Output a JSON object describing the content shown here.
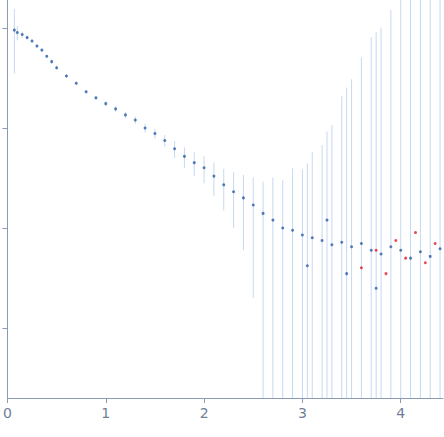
{
  "chart_data": {
    "type": "scatter",
    "log": "y",
    "tick_labels": "x",
    "grid": false,
    "xlim": [
      0,
      4.43
    ],
    "xticks": [
      0,
      1,
      2,
      3,
      4
    ],
    "ylim": [
      0.0002,
      1.9
    ],
    "yticks": [
      0.001,
      0.01,
      0.1,
      1
    ],
    "series": [
      {
        "color": "#2a5caa",
        "error_color": "#c6d9f0",
        "marker": "circle",
        "x": [
          0.07,
          0.1,
          0.15,
          0.2,
          0.25,
          0.3,
          0.35,
          0.4,
          0.45,
          0.5,
          0.6,
          0.7,
          0.8,
          0.9,
          1.0,
          1.1,
          1.2,
          1.3,
          1.4,
          1.5,
          1.6,
          1.7,
          1.8,
          1.9,
          2.0,
          2.1,
          2.2,
          2.3,
          2.4,
          2.5,
          2.6,
          2.7,
          2.8,
          2.9,
          3.0,
          3.05,
          3.1,
          3.2,
          3.25,
          3.3,
          3.4,
          3.45,
          3.5,
          3.6,
          3.7,
          3.75,
          3.8,
          3.9,
          4.0,
          4.1,
          4.2,
          4.3,
          4.4
        ],
        "values": [
          0.95,
          0.9,
          0.86,
          0.8,
          0.74,
          0.66,
          0.6,
          0.52,
          0.46,
          0.4,
          0.33,
          0.28,
          0.23,
          0.2,
          0.175,
          0.155,
          0.135,
          0.12,
          0.1,
          0.088,
          0.075,
          0.062,
          0.052,
          0.045,
          0.04,
          0.033,
          0.027,
          0.023,
          0.02,
          0.017,
          0.014,
          0.012,
          0.01,
          0.0095,
          0.0085,
          0.0042,
          0.008,
          0.0075,
          0.012,
          0.0068,
          0.0072,
          0.0035,
          0.0065,
          0.007,
          0.006,
          0.0025,
          0.0055,
          0.0065,
          0.006,
          0.005,
          0.0058,
          0.0052,
          0.0062
        ],
        "errors": [
          0.6,
          0.15,
          0.06,
          0.04,
          0.03,
          0.03,
          0.02,
          0.02,
          0.02,
          0.02,
          0.015,
          0.012,
          0.01,
          0.01,
          0.01,
          0.01,
          0.01,
          0.01,
          0.01,
          0.01,
          0.01,
          0.012,
          0.012,
          0.012,
          0.012,
          0.012,
          0.012,
          0.013,
          0.014,
          0.015,
          0.015,
          0.02,
          0.02,
          0.03,
          0.03,
          0.04,
          0.05,
          0.06,
          0.08,
          0.1,
          0.2,
          0.25,
          0.3,
          0.5,
          0.8,
          0.9,
          1,
          1.5,
          2,
          2,
          3,
          3,
          3
        ]
      },
      {
        "color": "#e0202a",
        "marker": "circle",
        "x": [
          3.6,
          3.75,
          3.85,
          3.95,
          4.05,
          4.15,
          4.25,
          4.35
        ],
        "values": [
          0.004,
          0.006,
          0.0035,
          0.0075,
          0.005,
          0.009,
          0.0045,
          0.007
        ]
      }
    ]
  }
}
